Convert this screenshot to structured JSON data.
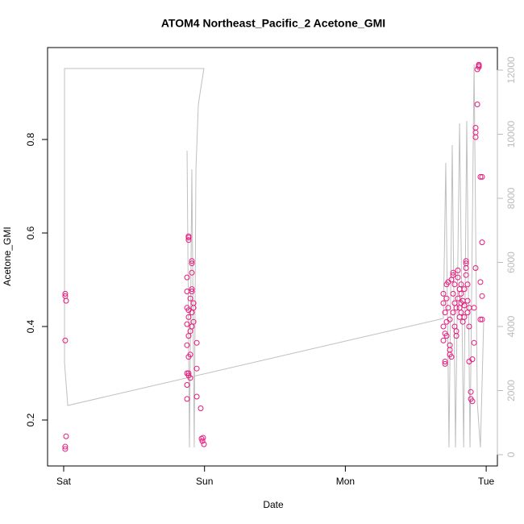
{
  "chart_data": {
    "type": "scatter",
    "title": "ATOM4 Northeast_Pacific_2 Acetone_GMI",
    "x_label": "Date",
    "y_label": "Acetone_GMI",
    "xlim": [
      -0.1145,
      3.0796
    ],
    "xticks": [
      {
        "value": 0,
        "label": "Sat"
      },
      {
        "value": 1,
        "label": "Sun"
      },
      {
        "value": 2,
        "label": "Mon"
      },
      {
        "value": 3,
        "label": "Tue"
      }
    ],
    "ylim": [
      0.1017,
      0.9966
    ],
    "yticks": [
      0.2,
      0.4,
      0.6,
      0.8
    ],
    "y2lim": [
      -352,
      12704
    ],
    "y2ticks": [
      0,
      2000,
      4000,
      6000,
      8000,
      10000,
      12000
    ],
    "series": [
      {
        "type": "line",
        "axis": "y2",
        "color": "#bfbfbf",
        "x": [
          0.876,
          0.893,
          0.91,
          0.927,
          0.939,
          0.956,
          0.973,
          0.996,
          0.006,
          0.006,
          0.029,
          2.696,
          2.713,
          2.736,
          2.759,
          2.782,
          2.811,
          2.84,
          2.862,
          2.885,
          2.914,
          2.937,
          2.959,
          2.982
        ],
        "values": [
          9484,
          226,
          8906,
          226,
          8906,
          10918,
          11421,
          12050,
          12050,
          2868,
          1535,
          4252,
          9107,
          226,
          9660,
          226,
          10340,
          226,
          10415,
          226,
          12176,
          1610,
          226,
          4126
        ]
      },
      {
        "type": "scatter",
        "color": "#e6197d",
        "x": [
          0.011,
          0.011,
          0.017,
          0.011,
          0.017,
          0.011,
          0.011,
          0.876,
          0.876,
          0.876,
          0.876,
          0.876,
          0.876,
          0.876,
          0.876,
          0.887,
          0.887,
          0.887,
          0.887,
          0.887,
          0.887,
          0.887,
          0.887,
          0.887,
          0.899,
          0.899,
          0.899,
          0.899,
          0.91,
          0.91,
          0.91,
          0.91,
          0.91,
          0.91,
          0.91,
          0.922,
          0.922,
          0.922,
          0.945,
          0.945,
          0.945,
          0.973,
          0.979,
          0.985,
          0.99,
          0.996,
          2.696,
          2.696,
          2.696,
          2.696,
          2.708,
          2.708,
          2.708,
          2.708,
          2.719,
          2.719,
          2.719,
          2.719,
          2.73,
          2.73,
          2.742,
          2.742,
          2.742,
          2.742,
          2.753,
          2.753,
          2.765,
          2.765,
          2.765,
          2.765,
          2.776,
          2.776,
          2.776,
          2.788,
          2.788,
          2.788,
          2.799,
          2.799,
          2.799,
          2.811,
          2.811,
          2.811,
          2.822,
          2.822,
          2.822,
          2.822,
          2.834,
          2.834,
          2.845,
          2.845,
          2.845,
          2.857,
          2.857,
          2.857,
          2.857,
          2.868,
          2.868,
          2.868,
          2.879,
          2.879,
          2.879,
          2.891,
          2.891,
          2.902,
          2.902,
          2.914,
          2.914,
          2.925,
          2.925,
          2.925,
          2.925,
          2.937,
          2.937,
          2.948,
          2.948,
          2.948,
          2.959,
          2.959,
          2.959,
          2.971,
          2.971,
          2.971,
          2.971
        ],
        "values": [
          0.47,
          0.465,
          0.455,
          0.37,
          0.165,
          0.143,
          0.138,
          0.245,
          0.275,
          0.3,
          0.36,
          0.405,
          0.44,
          0.475,
          0.505,
          0.59,
          0.593,
          0.585,
          0.295,
          0.3,
          0.335,
          0.38,
          0.42,
          0.435,
          0.29,
          0.34,
          0.39,
          0.46,
          0.535,
          0.54,
          0.515,
          0.475,
          0.4,
          0.43,
          0.48,
          0.45,
          0.44,
          0.41,
          0.365,
          0.31,
          0.25,
          0.225,
          0.16,
          0.155,
          0.162,
          0.148,
          0.47,
          0.45,
          0.4,
          0.37,
          0.325,
          0.32,
          0.385,
          0.43,
          0.49,
          0.46,
          0.41,
          0.38,
          0.495,
          0.44,
          0.36,
          0.35,
          0.34,
          0.415,
          0.335,
          0.5,
          0.47,
          0.51,
          0.515,
          0.43,
          0.4,
          0.45,
          0.49,
          0.38,
          0.39,
          0.44,
          0.505,
          0.52,
          0.46,
          0.48,
          0.44,
          0.42,
          0.43,
          0.45,
          0.47,
          0.49,
          0.455,
          0.41,
          0.48,
          0.445,
          0.42,
          0.535,
          0.54,
          0.525,
          0.51,
          0.49,
          0.455,
          0.43,
          0.44,
          0.4,
          0.325,
          0.26,
          0.245,
          0.24,
          0.33,
          0.365,
          0.44,
          0.525,
          0.805,
          0.815,
          0.825,
          0.875,
          0.95,
          0.955,
          0.96,
          0.958,
          0.72,
          0.495,
          0.415,
          0.72,
          0.58,
          0.465,
          0.415
        ]
      }
    ]
  }
}
